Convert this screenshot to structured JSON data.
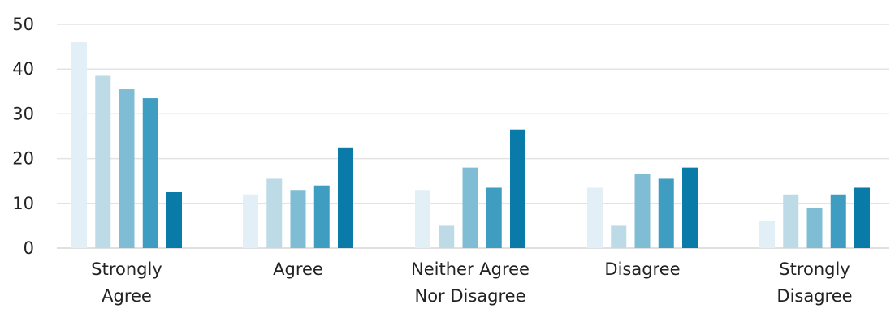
{
  "chart_data": {
    "type": "bar",
    "categories": [
      [
        "Strongly",
        "Agree"
      ],
      [
        "Agree"
      ],
      [
        "Neither Agree",
        "Nor Disagree"
      ],
      [
        "Disagree"
      ],
      [
        "Strongly",
        "Disagree"
      ]
    ],
    "series": [
      {
        "color": "#e3eff6",
        "values": [
          46,
          12,
          13,
          13.5,
          6
        ]
      },
      {
        "color": "#bcdbe6",
        "values": [
          38.5,
          15.5,
          5,
          5,
          12
        ]
      },
      {
        "color": "#7fbdd5",
        "values": [
          35.5,
          13,
          18,
          16.5,
          9
        ]
      },
      {
        "color": "#3f9dc1",
        "values": [
          33.5,
          14,
          13.5,
          15.5,
          12
        ]
      },
      {
        "color": "#0a7aa8",
        "values": [
          12.5,
          22.5,
          26.5,
          18,
          13.5
        ]
      }
    ],
    "yticks": [
      "0",
      "10",
      "20",
      "30",
      "40",
      "50"
    ],
    "ylim": [
      0,
      50
    ],
    "grid": true,
    "legend": "none"
  }
}
